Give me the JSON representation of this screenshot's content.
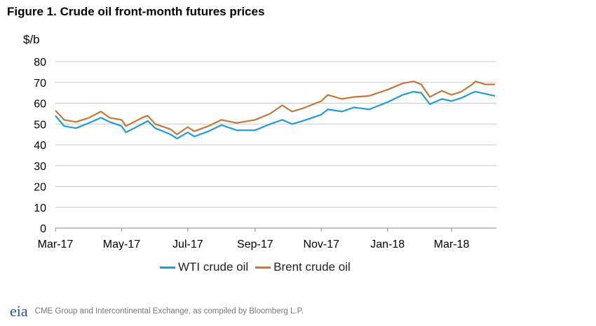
{
  "chart_data": {
    "type": "line",
    "title": "Figure 1. Crude oil front-month futures prices",
    "ylabel": "$/b",
    "xlabel": "",
    "ylim": [
      0,
      80
    ],
    "yticks": [
      0,
      10,
      20,
      30,
      40,
      50,
      60,
      70,
      80
    ],
    "xticks": [
      "Mar-17",
      "May-17",
      "Jul-17",
      "Sep-17",
      "Nov-17",
      "Jan-18",
      "Mar-18"
    ],
    "xtick_dates": [
      "2017-03-01",
      "2017-05-01",
      "2017-07-01",
      "2017-09-01",
      "2017-11-01",
      "2018-01-01",
      "2018-03-01"
    ],
    "xlim": [
      "2017-03-01",
      "2018-04-15"
    ],
    "grid": "horizontal",
    "legend": "bottom",
    "x": [
      "2017-03-01",
      "2017-03-09",
      "2017-03-20",
      "2017-04-01",
      "2017-04-12",
      "2017-04-20",
      "2017-05-01",
      "2017-05-05",
      "2017-05-20",
      "2017-05-25",
      "2017-06-01",
      "2017-06-15",
      "2017-06-21",
      "2017-07-01",
      "2017-07-07",
      "2017-07-20",
      "2017-08-01",
      "2017-08-15",
      "2017-09-01",
      "2017-09-15",
      "2017-09-26",
      "2017-10-05",
      "2017-10-15",
      "2017-11-01",
      "2017-11-07",
      "2017-11-20",
      "2017-12-01",
      "2017-12-15",
      "2018-01-01",
      "2018-01-15",
      "2018-01-25",
      "2018-02-01",
      "2018-02-09",
      "2018-02-20",
      "2018-03-01",
      "2018-03-10",
      "2018-03-20",
      "2018-03-23",
      "2018-04-01",
      "2018-04-10"
    ],
    "series": [
      {
        "name": "WTI crude oil",
        "color": "#1f9bd7",
        "values": [
          54,
          49,
          48,
          50.5,
          53,
          51,
          49,
          46,
          50,
          51.5,
          48,
          45,
          43,
          46,
          44,
          46.5,
          49.5,
          47,
          47,
          50,
          52,
          50,
          51.5,
          54.5,
          57,
          56,
          58,
          57,
          60.5,
          64,
          65.5,
          65,
          59.5,
          62,
          61,
          62.5,
          65,
          65.5,
          64.5,
          63.5
        ]
      },
      {
        "name": "Brent crude oil",
        "color": "#c0793a",
        "values": [
          56.5,
          52,
          51,
          53,
          56,
          53,
          52,
          49,
          53,
          54,
          50,
          47.5,
          45,
          48.5,
          46.5,
          49,
          52,
          50.5,
          52,
          55,
          59,
          56,
          57.5,
          61,
          64,
          62,
          63,
          63.5,
          66.5,
          69.5,
          70.5,
          69,
          63,
          66,
          64,
          65.5,
          69,
          70.5,
          69,
          69
        ]
      }
    ]
  },
  "footer": {
    "logo": "eia",
    "source": "CME Group and Intercontinental Exchange, as compiled by Bloomberg L.P."
  }
}
